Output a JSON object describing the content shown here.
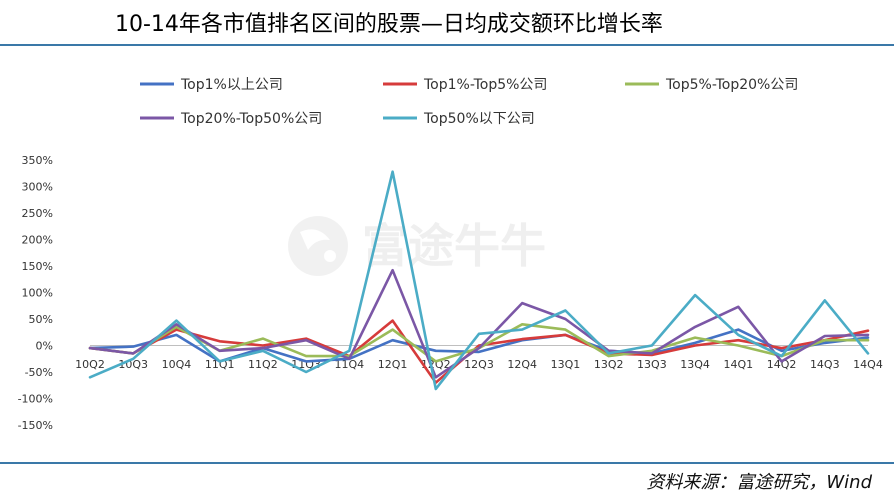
{
  "title": "10-14年各市值排名区间的股票—日均成交额环比增长率",
  "source": "资料来源：富途研究，Wind",
  "watermark": "富途牛牛",
  "chart_data": {
    "type": "line",
    "categories": [
      "10Q2",
      "10Q3",
      "10Q4",
      "11Q1",
      "11Q2",
      "11Q3",
      "11Q4",
      "12Q1",
      "12Q2",
      "12Q3",
      "12Q4",
      "13Q1",
      "13Q2",
      "13Q3",
      "13Q4",
      "14Q1",
      "14Q2",
      "14Q3",
      "14Q4"
    ],
    "y_ticks": [
      "350%",
      "300%",
      "250%",
      "200%",
      "150%",
      "100%",
      "50%",
      "0%",
      "-50%",
      "-100%",
      "-150%"
    ],
    "ylim": [
      -150,
      350
    ],
    "grid": false,
    "legend_position": "top",
    "series": [
      {
        "name": "Top1%以上公司",
        "color": "#4472c4",
        "values": [
          -5,
          -2,
          20,
          -30,
          -5,
          -30,
          -25,
          10,
          -10,
          -12,
          10,
          20,
          -10,
          -15,
          5,
          30,
          -10,
          5,
          15
        ]
      },
      {
        "name": "Top1%-Top5%公司",
        "color": "#d63b3b",
        "values": [
          -5,
          -15,
          30,
          8,
          0,
          13,
          -20,
          47,
          -70,
          0,
          12,
          20,
          -15,
          -18,
          0,
          10,
          -5,
          10,
          28
        ]
      },
      {
        "name": "Top5%-Top20%公司",
        "color": "#9bbb59",
        "values": [
          -5,
          -15,
          35,
          -10,
          13,
          -20,
          -20,
          30,
          -30,
          -5,
          40,
          30,
          -20,
          -10,
          15,
          0,
          -20,
          10,
          10
        ]
      },
      {
        "name": "Top20%-Top50%公司",
        "color": "#7b57a6",
        "values": [
          -5,
          -15,
          40,
          -10,
          -5,
          10,
          -25,
          142,
          -60,
          -5,
          80,
          50,
          -10,
          -15,
          35,
          73,
          -30,
          18,
          20
        ]
      },
      {
        "name": "Top50%以下公司",
        "color": "#4bacc6",
        "values": [
          -60,
          -25,
          47,
          -30,
          -10,
          -50,
          -10,
          328,
          -82,
          22,
          30,
          66,
          -15,
          0,
          95,
          20,
          -20,
          85,
          -15
        ]
      }
    ]
  }
}
